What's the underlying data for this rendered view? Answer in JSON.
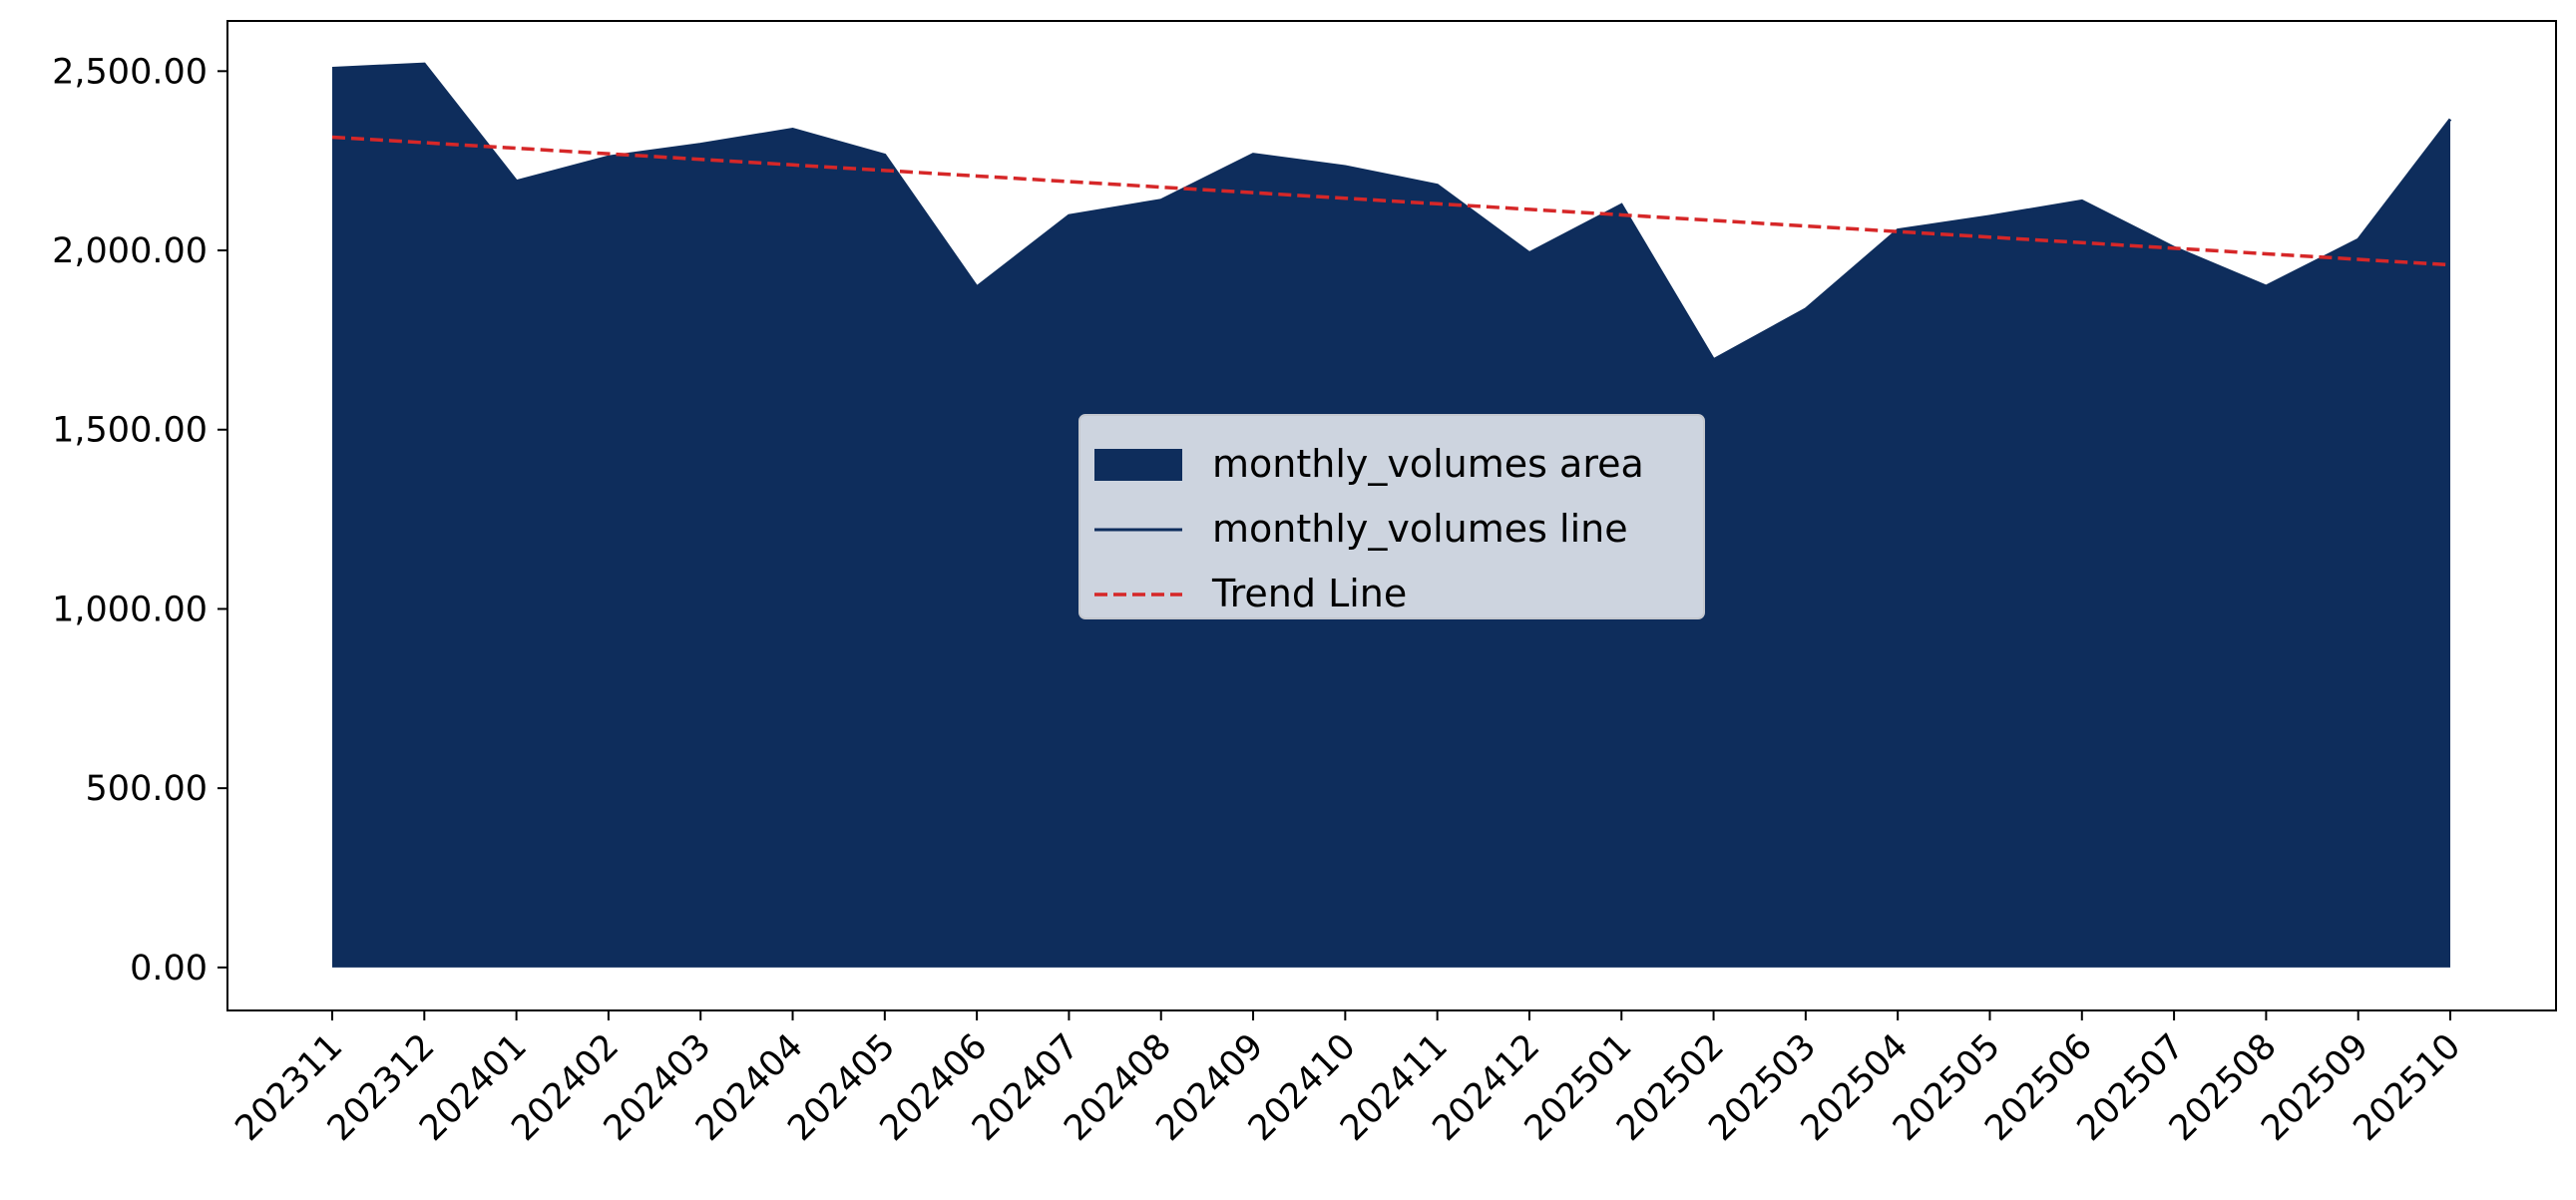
{
  "chart_data": {
    "type": "area",
    "title": "",
    "xlabel": "",
    "ylabel": "",
    "categories": [
      "202311",
      "202312",
      "202401",
      "202402",
      "202403",
      "202404",
      "202405",
      "202406",
      "202407",
      "202408",
      "202409",
      "202410",
      "202411",
      "202412",
      "202501",
      "202502",
      "202503",
      "202504",
      "202505",
      "202506",
      "202507",
      "202508",
      "202509",
      "202510"
    ],
    "series": [
      {
        "name": "monthly_volumes area",
        "kind": "area",
        "color": "#0e2d5c",
        "values": [
          2508,
          2520,
          2193,
          2261,
          2296,
          2338,
          2266,
          1898,
          2097,
          2140,
          2268,
          2234,
          2182,
          1993,
          2127,
          1695,
          1836,
          2057,
          2095,
          2138,
          2008,
          1900,
          2030,
          2366
        ]
      },
      {
        "name": "monthly_volumes line",
        "kind": "line",
        "color": "#0e2d5c",
        "values": [
          2508,
          2520,
          2193,
          2261,
          2296,
          2338,
          2266,
          1898,
          2097,
          2140,
          2268,
          2234,
          2182,
          1993,
          2127,
          1695,
          1836,
          2057,
          2095,
          2138,
          2008,
          1900,
          2030,
          2366
        ]
      },
      {
        "name": "Trend Line",
        "kind": "dashed-line",
        "color": "#d62728",
        "values": [
          2316,
          2300.5,
          2285,
          2269.5,
          2254,
          2238.5,
          2223,
          2207.5,
          2192,
          2176.5,
          2161,
          2145.5,
          2130,
          2114.5,
          2099,
          2083.5,
          2068,
          2052.5,
          2037,
          2021.5,
          2006,
          1990.5,
          1975,
          1959.5
        ]
      }
    ],
    "ylim": [
      -120,
      2640
    ],
    "yticks": [
      0,
      500,
      1000,
      1500,
      2000,
      2500
    ],
    "ytick_labels": [
      "0.00",
      "500.00",
      "1,000.00",
      "1,500.00",
      "2,000.00",
      "2,500.00"
    ],
    "grid": false,
    "legend": {
      "placement": "center",
      "entries": [
        "monthly_volumes area",
        "monthly_volumes line",
        "Trend Line"
      ]
    }
  }
}
